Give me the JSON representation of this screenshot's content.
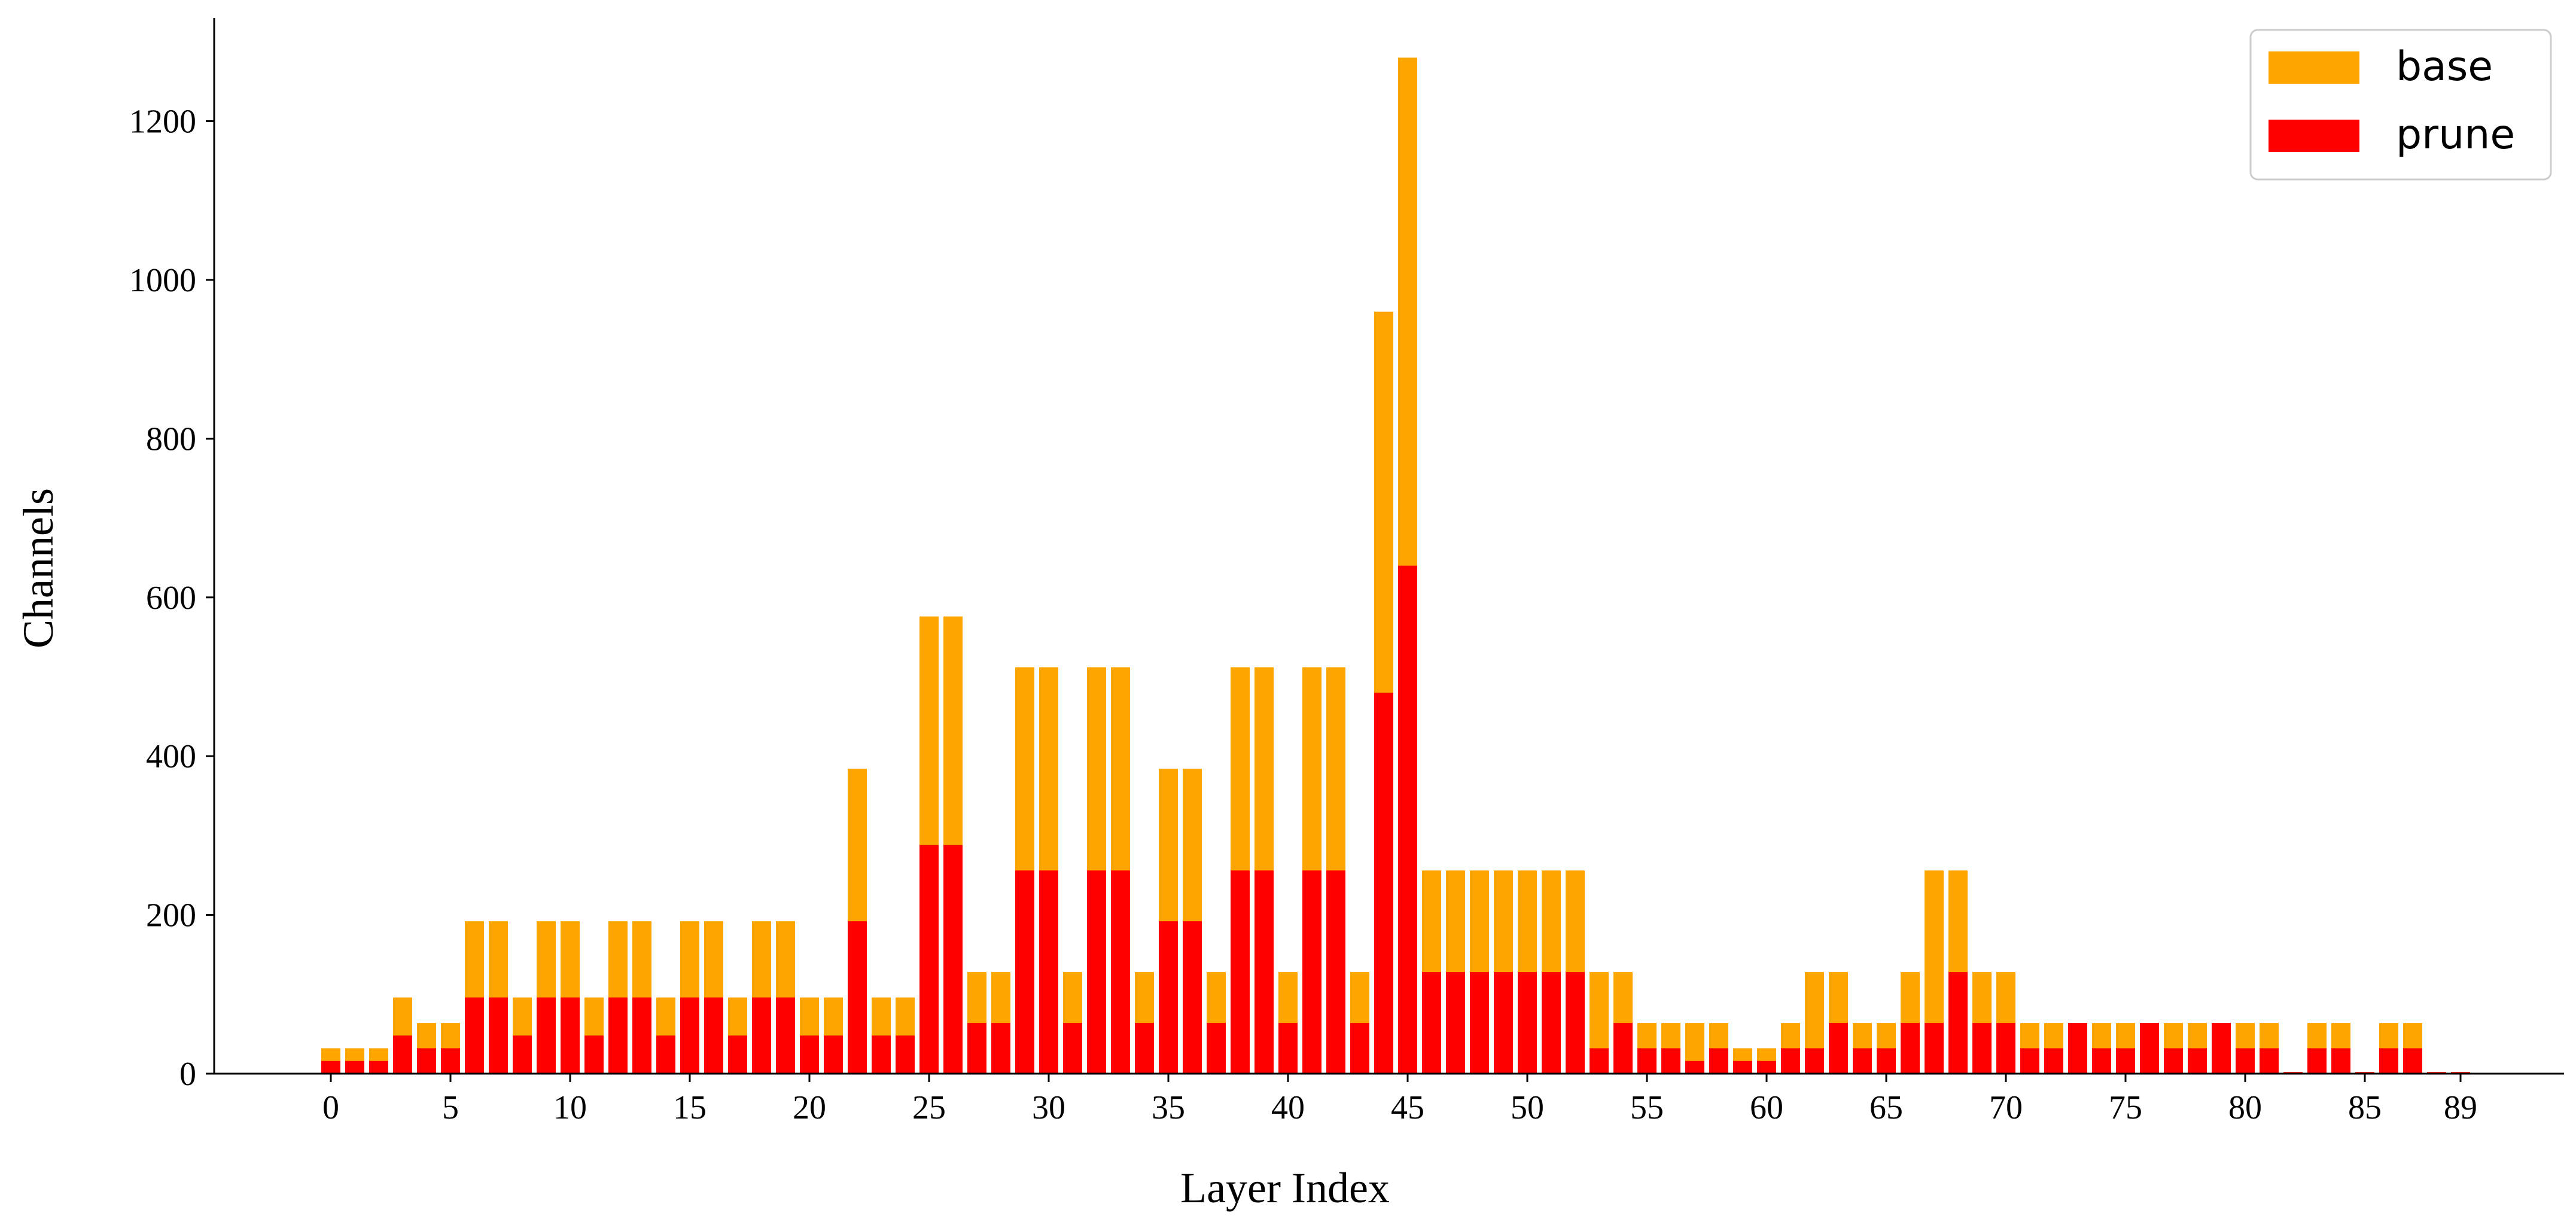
{
  "chart_data": {
    "type": "bar",
    "stacked": "overlay",
    "title": "",
    "xlabel": "Layer Index",
    "ylabel": "Channels",
    "ylim": [
      0,
      1330
    ],
    "yticks": [
      0,
      200,
      400,
      600,
      800,
      1000,
      1200
    ],
    "xticks": [
      0,
      5,
      10,
      15,
      20,
      25,
      30,
      35,
      40,
      45,
      50,
      55,
      60,
      65,
      70,
      75,
      80,
      85,
      89
    ],
    "x": [
      0,
      1,
      2,
      3,
      4,
      5,
      6,
      7,
      8,
      9,
      10,
      11,
      12,
      13,
      14,
      15,
      16,
      17,
      18,
      19,
      20,
      21,
      22,
      23,
      24,
      25,
      26,
      27,
      28,
      29,
      30,
      31,
      32,
      33,
      34,
      35,
      36,
      37,
      38,
      39,
      40,
      41,
      42,
      43,
      44,
      45,
      46,
      47,
      48,
      49,
      50,
      51,
      52,
      53,
      54,
      55,
      56,
      57,
      58,
      59,
      60,
      61,
      62,
      63,
      64,
      65,
      66,
      67,
      68,
      69,
      70,
      71,
      72,
      73,
      74,
      75,
      76,
      77,
      78,
      79,
      80,
      81,
      82,
      83,
      84,
      85,
      86,
      87,
      88,
      89
    ],
    "legend_position": "top-right",
    "grid": false,
    "series": [
      {
        "name": "base",
        "color": "#FFA500",
        "values": [
          32,
          32,
          32,
          96,
          64,
          64,
          192,
          192,
          96,
          192,
          192,
          96,
          192,
          192,
          96,
          192,
          192,
          96,
          192,
          192,
          96,
          96,
          384,
          96,
          96,
          576,
          576,
          128,
          128,
          512,
          512,
          128,
          512,
          512,
          128,
          384,
          384,
          128,
          512,
          512,
          128,
          512,
          512,
          128,
          960,
          1280,
          256,
          256,
          256,
          256,
          256,
          256,
          256,
          128,
          128,
          64,
          64,
          64,
          64,
          32,
          32,
          64,
          128,
          128,
          64,
          64,
          128,
          256,
          256,
          128,
          128,
          64,
          64,
          64,
          64,
          64,
          64,
          64,
          64,
          64,
          64,
          64,
          2,
          64,
          64,
          2,
          64,
          64,
          2,
          2
        ]
      },
      {
        "name": "prune",
        "color": "#FF0000",
        "values": [
          16,
          16,
          16,
          48,
          32,
          32,
          96,
          96,
          48,
          96,
          96,
          48,
          96,
          96,
          48,
          96,
          96,
          48,
          96,
          96,
          48,
          48,
          192,
          48,
          48,
          288,
          288,
          64,
          64,
          256,
          256,
          64,
          256,
          256,
          64,
          192,
          192,
          64,
          256,
          256,
          64,
          256,
          256,
          64,
          480,
          640,
          128,
          128,
          128,
          128,
          128,
          128,
          128,
          32,
          64,
          32,
          32,
          16,
          32,
          16,
          16,
          32,
          32,
          64,
          32,
          32,
          64,
          64,
          128,
          64,
          64,
          32,
          32,
          64,
          32,
          32,
          64,
          32,
          32,
          64,
          32,
          32,
          2,
          32,
          32,
          2,
          32,
          32,
          2,
          2
        ]
      }
    ]
  }
}
